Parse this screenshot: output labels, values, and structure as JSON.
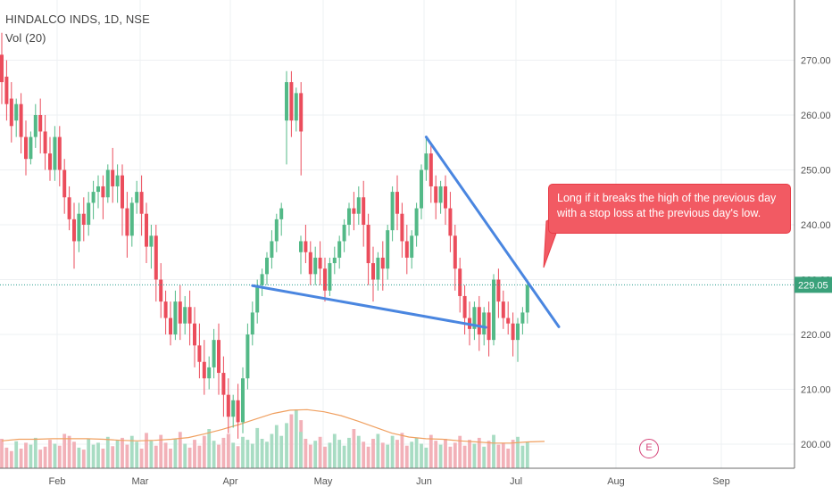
{
  "header": {
    "symbol_line": "HINDALCO INDS, 1D, NSE",
    "volume_line": "Vol (20)"
  },
  "callout": {
    "line1": "Long if it breaks the high of the previous day",
    "line2": "with a stop loss at the previous day's low."
  },
  "price_label": "229.05",
  "earnings_marker": "E",
  "colors": {
    "up": "#53b987",
    "down": "#eb4d5c",
    "vol_up": "#a8dcc3",
    "vol_down": "#f2b1b8",
    "trendline": "#4a86e0",
    "vol_ma": "#f0a060",
    "price_line": "#2a9d8f",
    "callout": "#f25a63"
  },
  "chart_data": {
    "type": "candlestick",
    "title": "HINDALCO INDS, 1D, NSE",
    "indicator": "Vol (20)",
    "y_axis": {
      "ticks": [
        "200.00",
        "210.00",
        "220.00",
        "230.00",
        "240.00",
        "250.00",
        "260.00",
        "270.00"
      ],
      "ylim": [
        197,
        275
      ]
    },
    "x_axis": {
      "ticks": [
        "Feb",
        "Mar",
        "Apr",
        "May",
        "Jun",
        "Jul",
        "Aug",
        "Sep"
      ]
    },
    "last_price": 229.05,
    "candles": [
      {
        "o": 271,
        "h": 275,
        "c": 266,
        "l": 262
      },
      {
        "o": 267,
        "h": 270,
        "c": 262,
        "l": 259
      },
      {
        "o": 263,
        "h": 266,
        "c": 258,
        "l": 255
      },
      {
        "o": 259,
        "h": 263,
        "c": 262,
        "l": 256
      },
      {
        "o": 262,
        "h": 264,
        "c": 256,
        "l": 253
      },
      {
        "o": 256,
        "h": 259,
        "c": 252,
        "l": 249
      },
      {
        "o": 252,
        "h": 257,
        "c": 256,
        "l": 251
      },
      {
        "o": 256,
        "h": 262,
        "c": 260,
        "l": 254
      },
      {
        "o": 260,
        "h": 263,
        "c": 257,
        "l": 253
      },
      {
        "o": 257,
        "h": 260,
        "c": 253,
        "l": 250
      },
      {
        "o": 253,
        "h": 256,
        "c": 250,
        "l": 248
      },
      {
        "o": 250,
        "h": 258,
        "c": 256,
        "l": 248
      },
      {
        "o": 256,
        "h": 258,
        "c": 250,
        "l": 247
      },
      {
        "o": 250,
        "h": 252,
        "c": 245,
        "l": 242
      },
      {
        "o": 245,
        "h": 247,
        "c": 241,
        "l": 239
      },
      {
        "o": 241,
        "h": 244,
        "c": 237,
        "l": 232
      },
      {
        "o": 237,
        "h": 244,
        "c": 242,
        "l": 235
      },
      {
        "o": 242,
        "h": 245,
        "c": 240,
        "l": 237
      },
      {
        "o": 240,
        "h": 246,
        "c": 244,
        "l": 238
      },
      {
        "o": 244,
        "h": 248,
        "c": 246,
        "l": 241
      },
      {
        "o": 246,
        "h": 249,
        "c": 247,
        "l": 243
      },
      {
        "o": 247,
        "h": 249,
        "c": 245,
        "l": 241
      },
      {
        "o": 245,
        "h": 251,
        "c": 250,
        "l": 244
      },
      {
        "o": 250,
        "h": 254,
        "c": 247,
        "l": 244
      },
      {
        "o": 247,
        "h": 251,
        "c": 249,
        "l": 244
      },
      {
        "o": 249,
        "h": 251,
        "c": 243,
        "l": 238
      },
      {
        "o": 243,
        "h": 246,
        "c": 238,
        "l": 234
      },
      {
        "o": 238,
        "h": 245,
        "c": 244,
        "l": 236
      },
      {
        "o": 244,
        "h": 248,
        "c": 246,
        "l": 242
      },
      {
        "o": 246,
        "h": 249,
        "c": 242,
        "l": 238
      },
      {
        "o": 242,
        "h": 244,
        "c": 236,
        "l": 233
      },
      {
        "o": 236,
        "h": 240,
        "c": 238,
        "l": 232
      },
      {
        "o": 238,
        "h": 240,
        "c": 230,
        "l": 226
      },
      {
        "o": 230,
        "h": 233,
        "c": 226,
        "l": 223
      },
      {
        "o": 226,
        "h": 228,
        "c": 223,
        "l": 220
      },
      {
        "o": 223,
        "h": 226,
        "c": 220,
        "l": 218
      },
      {
        "o": 220,
        "h": 228,
        "c": 226,
        "l": 219
      },
      {
        "o": 226,
        "h": 229,
        "c": 222,
        "l": 219
      },
      {
        "o": 222,
        "h": 227,
        "c": 225,
        "l": 220
      },
      {
        "o": 225,
        "h": 228,
        "c": 222,
        "l": 218
      },
      {
        "o": 222,
        "h": 225,
        "c": 218,
        "l": 214
      },
      {
        "o": 218,
        "h": 222,
        "c": 215,
        "l": 212
      },
      {
        "o": 215,
        "h": 219,
        "c": 212,
        "l": 209
      },
      {
        "o": 212,
        "h": 216,
        "c": 214,
        "l": 210
      },
      {
        "o": 214,
        "h": 221,
        "c": 219,
        "l": 212
      },
      {
        "o": 219,
        "h": 222,
        "c": 213,
        "l": 209
      },
      {
        "o": 213,
        "h": 216,
        "c": 209,
        "l": 205
      },
      {
        "o": 209,
        "h": 212,
        "c": 205,
        "l": 202
      },
      {
        "o": 205,
        "h": 209,
        "c": 208,
        "l": 203
      },
      {
        "o": 208,
        "h": 211,
        "c": 204,
        "l": 201
      },
      {
        "o": 204,
        "h": 214,
        "c": 212,
        "l": 202
      },
      {
        "o": 212,
        "h": 222,
        "c": 220,
        "l": 210
      },
      {
        "o": 220,
        "h": 226,
        "c": 224,
        "l": 218
      },
      {
        "o": 224,
        "h": 230,
        "c": 229,
        "l": 222
      },
      {
        "o": 229,
        "h": 232,
        "c": 231,
        "l": 227
      },
      {
        "o": 231,
        "h": 235,
        "c": 234,
        "l": 229
      },
      {
        "o": 234,
        "h": 239,
        "c": 237,
        "l": 232
      },
      {
        "o": 237,
        "h": 242,
        "c": 241,
        "l": 235
      },
      {
        "o": 241,
        "h": 244,
        "c": 243,
        "l": 238
      },
      {
        "o": 259,
        "h": 268,
        "c": 266,
        "l": 251
      },
      {
        "o": 266,
        "h": 268,
        "c": 259,
        "l": 256
      },
      {
        "o": 259,
        "h": 265,
        "c": 264,
        "l": 257
      },
      {
        "o": 264,
        "h": 266,
        "c": 257,
        "l": 249
      },
      {
        "o": 235,
        "h": 238,
        "c": 237,
        "l": 231
      },
      {
        "o": 237,
        "h": 240,
        "c": 235,
        "l": 233
      },
      {
        "o": 235,
        "h": 237,
        "c": 231,
        "l": 229
      },
      {
        "o": 231,
        "h": 236,
        "c": 234,
        "l": 229
      },
      {
        "o": 234,
        "h": 237,
        "c": 232,
        "l": 229
      },
      {
        "o": 232,
        "h": 234,
        "c": 228,
        "l": 226
      },
      {
        "o": 228,
        "h": 234,
        "c": 233,
        "l": 227
      },
      {
        "o": 233,
        "h": 236,
        "c": 234,
        "l": 231
      },
      {
        "o": 234,
        "h": 238,
        "c": 237,
        "l": 232
      },
      {
        "o": 237,
        "h": 241,
        "c": 240,
        "l": 235
      },
      {
        "o": 240,
        "h": 244,
        "c": 243,
        "l": 238
      },
      {
        "o": 243,
        "h": 246,
        "c": 242,
        "l": 239
      },
      {
        "o": 242,
        "h": 247,
        "c": 245,
        "l": 240
      },
      {
        "o": 245,
        "h": 248,
        "c": 240,
        "l": 236
      },
      {
        "o": 240,
        "h": 242,
        "c": 233,
        "l": 229
      },
      {
        "o": 233,
        "h": 236,
        "c": 230,
        "l": 226
      },
      {
        "o": 230,
        "h": 235,
        "c": 234,
        "l": 228
      },
      {
        "o": 234,
        "h": 237,
        "c": 232,
        "l": 228
      },
      {
        "o": 232,
        "h": 240,
        "c": 239,
        "l": 230
      },
      {
        "o": 239,
        "h": 247,
        "c": 246,
        "l": 237
      },
      {
        "o": 246,
        "h": 249,
        "c": 242,
        "l": 239
      },
      {
        "o": 242,
        "h": 244,
        "c": 237,
        "l": 234
      },
      {
        "o": 237,
        "h": 240,
        "c": 234,
        "l": 231
      },
      {
        "o": 234,
        "h": 239,
        "c": 238,
        "l": 232
      },
      {
        "o": 238,
        "h": 244,
        "c": 243,
        "l": 236
      },
      {
        "o": 243,
        "h": 251,
        "c": 250,
        "l": 241
      },
      {
        "o": 250,
        "h": 256,
        "c": 253,
        "l": 248
      },
      {
        "o": 253,
        "h": 255,
        "c": 247,
        "l": 244
      },
      {
        "o": 247,
        "h": 249,
        "c": 244,
        "l": 241
      },
      {
        "o": 244,
        "h": 248,
        "c": 247,
        "l": 242
      },
      {
        "o": 247,
        "h": 249,
        "c": 243,
        "l": 240
      },
      {
        "o": 243,
        "h": 246,
        "c": 238,
        "l": 235
      },
      {
        "o": 238,
        "h": 240,
        "c": 232,
        "l": 228
      },
      {
        "o": 232,
        "h": 234,
        "c": 227,
        "l": 224
      },
      {
        "o": 227,
        "h": 229,
        "c": 223,
        "l": 220
      },
      {
        "o": 223,
        "h": 226,
        "c": 221,
        "l": 218
      },
      {
        "o": 221,
        "h": 226,
        "c": 225,
        "l": 219
      },
      {
        "o": 225,
        "h": 227,
        "c": 220,
        "l": 217
      },
      {
        "o": 220,
        "h": 225,
        "c": 224,
        "l": 218
      },
      {
        "o": 224,
        "h": 226,
        "c": 219,
        "l": 216
      },
      {
        "o": 219,
        "h": 231,
        "c": 230,
        "l": 218
      },
      {
        "o": 230,
        "h": 232,
        "c": 226,
        "l": 223
      },
      {
        "o": 226,
        "h": 228,
        "c": 223,
        "l": 221
      },
      {
        "o": 223,
        "h": 226,
        "c": 222,
        "l": 220
      },
      {
        "o": 222,
        "h": 224,
        "c": 219,
        "l": 216
      },
      {
        "o": 219,
        "h": 223,
        "c": 222,
        "l": 215
      },
      {
        "o": 222,
        "h": 225,
        "c": 224,
        "l": 220
      },
      {
        "o": 224,
        "h": 230,
        "c": 229,
        "l": 222
      }
    ],
    "volume_ma": [
      200.6,
      200.9,
      200.9,
      201.0,
      201.0,
      201.0,
      200.9,
      200.7,
      200.6,
      200.7,
      200.9,
      201.2,
      201.9,
      202.7,
      203.6,
      204.6,
      205.6,
      206.2,
      206.3,
      205.9,
      205.2,
      204.2,
      203.1,
      202.0,
      201.3,
      201.0,
      200.9,
      200.6,
      200.4,
      200.2,
      200.2,
      200.4,
      200.5
    ]
  }
}
